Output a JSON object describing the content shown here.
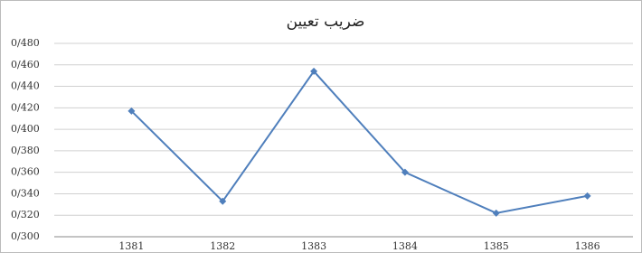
{
  "chart_data": {
    "type": "line",
    "title": "ضریب تعیین",
    "categories": [
      "1381",
      "1382",
      "1383",
      "1384",
      "1385",
      "1386"
    ],
    "series": [
      {
        "color": "#4f7fbc",
        "values": [
          0.417,
          0.333,
          0.454,
          0.36,
          0.322,
          0.338
        ]
      }
    ],
    "ylim": [
      0.3,
      0.48
    ],
    "yticks": [
      {
        "value": 0.3,
        "label": "0/300"
      },
      {
        "value": 0.32,
        "label": "0/320"
      },
      {
        "value": 0.34,
        "label": "0/340"
      },
      {
        "value": 0.36,
        "label": "0/360"
      },
      {
        "value": 0.38,
        "label": "0/380"
      },
      {
        "value": 0.4,
        "label": "0/400"
      },
      {
        "value": 0.42,
        "label": "0/420"
      },
      {
        "value": 0.44,
        "label": "0/440"
      },
      {
        "value": 0.46,
        "label": "0/460"
      },
      {
        "value": 0.48,
        "label": "0/480"
      }
    ],
    "grid": true
  }
}
